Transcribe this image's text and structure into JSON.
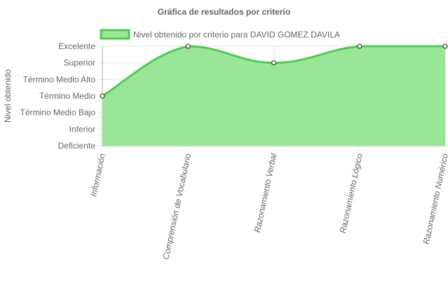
{
  "chart_data": {
    "type": "area",
    "title": "Gráfica de resultados por criterio",
    "ylabel": "Nivel obtenido",
    "xlabel": "",
    "y_levels": [
      "Deficiente",
      "Inferior",
      "Término Medio Bajo",
      "Término Medio",
      "Término Medio Alto",
      "Superior",
      "Excelente"
    ],
    "ylim": [
      0,
      6
    ],
    "categories": [
      "Información",
      "Comprensión de Vocabulario",
      "Razonamiento Verbal",
      "Razonamiento Lógico",
      "Razonamiento Numérico"
    ],
    "series": [
      {
        "name": "Nivel obtenido por criterio para DAVID GOMEZ DAVILA",
        "values": [
          3,
          6,
          5,
          6,
          6
        ]
      }
    ],
    "legend_position": "top",
    "grid": true,
    "colors": {
      "line": "#4dcc4d",
      "fill": "#99e699",
      "point_fill": "#ffffff",
      "point_stroke": "#1f1f1f"
    }
  }
}
